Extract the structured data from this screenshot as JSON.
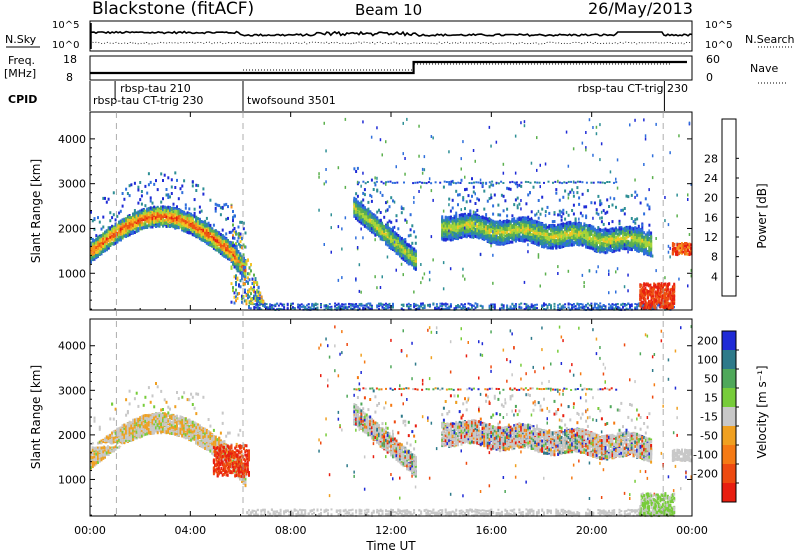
{
  "header": {
    "station": "Blackstone (fitACF)",
    "beam": "Beam 10",
    "date": "26/May/2013"
  },
  "top_panel": {
    "left_label": "N.Sky",
    "right_label": "N.Search",
    "left_ticks": [
      "10^5",
      "10^0"
    ],
    "right_ticks": [
      "10^5",
      "10^0"
    ]
  },
  "freq_panel": {
    "left_label_1": "Freq.",
    "left_label_2": "[MHz]",
    "right_label": "Nave",
    "left_ticks": [
      "18",
      "8"
    ],
    "right_ticks": [
      "60",
      "0"
    ]
  },
  "cpid": {
    "label": "CPID",
    "segments": [
      {
        "name": "rbsp-tau 210",
        "start": 1.0,
        "end": 1.3
      },
      {
        "name": "rbsp-tau CT-trig 230",
        "start": 0.0,
        "end": 6.1
      },
      {
        "name": "twofsound 3501",
        "start": 6.1,
        "end": 22.9
      },
      {
        "name": "rbsp-tau CT-trig 230",
        "start": 22.9,
        "end": 24.0
      }
    ]
  },
  "chart_data": [
    {
      "type": "heatmap",
      "panel": "power",
      "ylabel": "Slant Range [km]",
      "y_ticks": [
        "1000",
        "2000",
        "3000",
        "4000"
      ],
      "ylim": [
        180,
        4600
      ],
      "xlim": [
        0,
        24
      ],
      "colorbar": {
        "label": "Power [dB]",
        "ticks": [
          "4",
          "8",
          "12",
          "16",
          "20",
          "24",
          "28"
        ],
        "colors": [
          "#1f2bd6",
          "#2f6fdc",
          "#2e8f95",
          "#5cb04e",
          "#a6d63a",
          "#f5c522",
          "#f5921e",
          "#ee5512",
          "#e81e10"
        ]
      },
      "regions": [
        {
          "name": "arc",
          "x": [
            0.0,
            6.2
          ],
          "center": [
            1400,
            2300
          ],
          "level": "high"
        },
        {
          "name": "descending-band",
          "x": [
            10.5,
            13.0
          ],
          "center": [
            2400,
            1300
          ],
          "level": "medium"
        },
        {
          "name": "steady-band",
          "x": [
            14.0,
            22.4
          ],
          "center": [
            2100,
            1700
          ],
          "level": "medium"
        },
        {
          "name": "near-range-patch",
          "x": [
            21.9,
            23.3
          ],
          "center": [
            500,
            500
          ],
          "level": "very-high"
        },
        {
          "name": "ground-scatter",
          "x": [
            6.2,
            24.0
          ],
          "center": [
            250,
            250
          ],
          "level": "low"
        }
      ]
    },
    {
      "type": "heatmap",
      "panel": "velocity",
      "ylabel": "Slant Range [km]",
      "y_ticks": [
        "1000",
        "2000",
        "3000",
        "4000"
      ],
      "ylim": [
        180,
        4600
      ],
      "xlim": [
        0,
        24
      ],
      "x_ticks": [
        "00:00",
        "04:00",
        "08:00",
        "12:00",
        "16:00",
        "20:00",
        "00:00"
      ],
      "xlabel": "Time UT",
      "colorbar": {
        "label": "Velocity [m s⁻¹]",
        "ticks": [
          "200",
          "100",
          "50",
          "15",
          "-15",
          "-50",
          "-100",
          "-200"
        ],
        "colors": [
          "#1f2bd6",
          "#2e7a8a",
          "#4fa85a",
          "#77cc3a",
          "#c8c8c8",
          "#f0a020",
          "#f57a14",
          "#ee4a10",
          "#e81e10"
        ]
      }
    }
  ],
  "style": {
    "frame_color": "#000000",
    "dashed_marker_color": "#9a9a9a"
  }
}
